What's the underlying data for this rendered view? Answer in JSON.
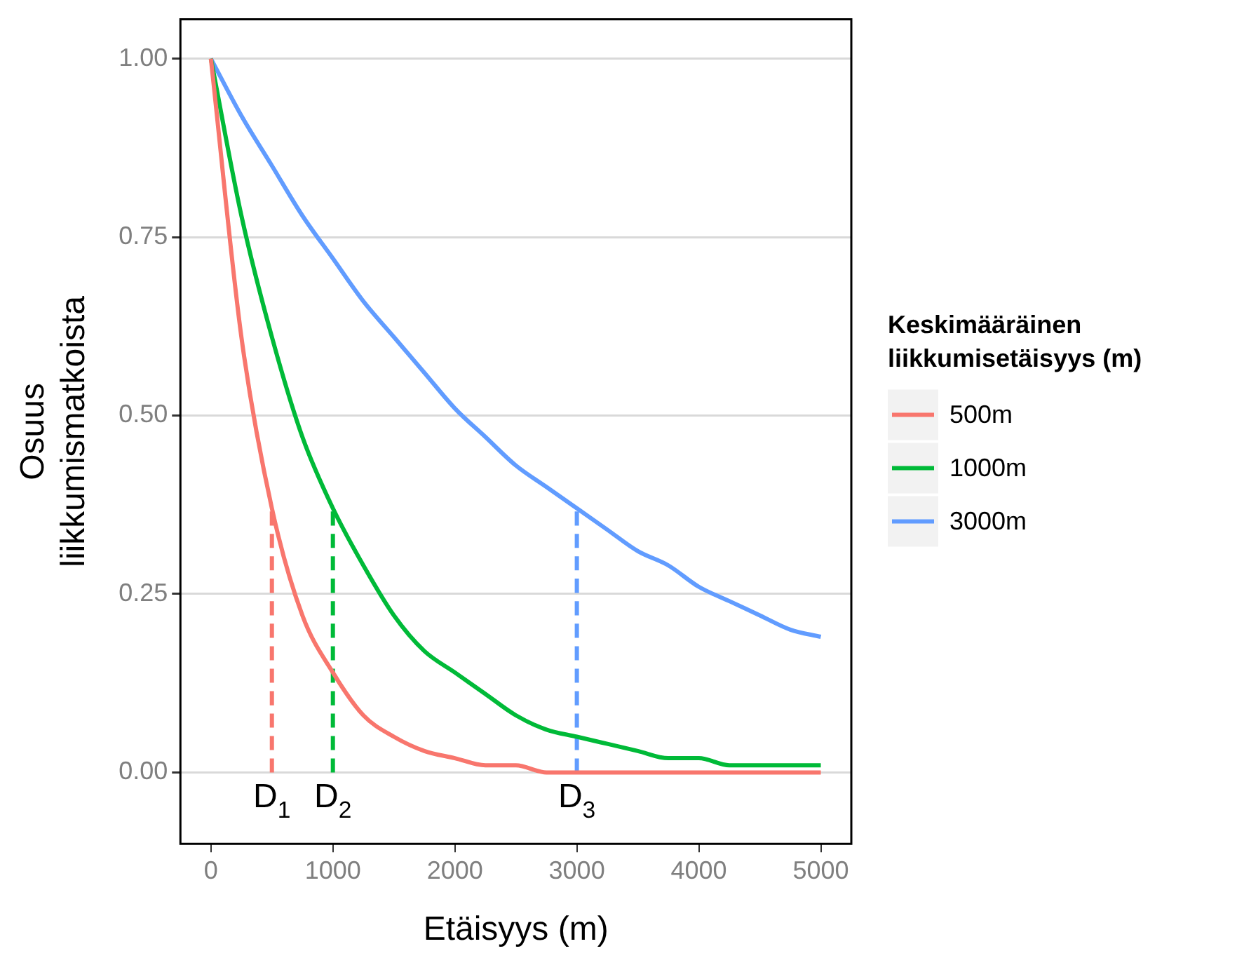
{
  "chart_data": {
    "type": "line",
    "xlabel": "Etäisyys (m)",
    "ylabel": "Osuus liikkumismatkoista",
    "legend_title": "Keskimääräinen liikkumisetäisyys (m)",
    "legend": "right",
    "grid": "y",
    "marker": "none",
    "line_style": "solid",
    "x": [
      0,
      250,
      500,
      750,
      1000,
      1250,
      1500,
      1750,
      2000,
      2250,
      2500,
      2750,
      3000,
      3250,
      3500,
      3750,
      4000,
      4250,
      4500,
      4750,
      5000
    ],
    "series": [
      {
        "name": "500m",
        "color": "#f8766d",
        "values": [
          1,
          0.61,
          0.37,
          0.22,
          0.14,
          0.08,
          0.05,
          0.03,
          0.02,
          0.01,
          0.01,
          0,
          0,
          0,
          0,
          0,
          0,
          0,
          0,
          0,
          0
        ]
      },
      {
        "name": "1000m",
        "color": "#00ba38",
        "values": [
          1,
          0.78,
          0.61,
          0.47,
          0.37,
          0.29,
          0.22,
          0.17,
          0.14,
          0.11,
          0.08,
          0.06,
          0.05,
          0.04,
          0.03,
          0.02,
          0.02,
          0.01,
          0.01,
          0.01,
          0.01
        ]
      },
      {
        "name": "3000m",
        "color": "#619cff",
        "values": [
          1,
          0.92,
          0.85,
          0.78,
          0.72,
          0.66,
          0.61,
          0.56,
          0.51,
          0.47,
          0.43,
          0.4,
          0.37,
          0.34,
          0.31,
          0.29,
          0.26,
          0.24,
          0.22,
          0.2,
          0.19
        ]
      },
      {
        "type": "line",
        "line_style": "dashed",
        "color": "#f8766d",
        "x": [
          500,
          500
        ],
        "values": [
          0,
          0.37
        ]
      },
      {
        "type": "line",
        "line_style": "dashed",
        "color": "#00ba38",
        "x": [
          1000,
          1000
        ],
        "values": [
          0,
          0.37
        ]
      },
      {
        "type": "line",
        "line_style": "dashed",
        "color": "#619cff",
        "x": [
          3000,
          3000
        ],
        "values": [
          0,
          0.37
        ]
      }
    ],
    "annotations": [
      {
        "text": "D$_{1}$",
        "x": 500,
        "y": 0
      },
      {
        "text": "D$_{2}$",
        "x": 1000,
        "y": 0
      },
      {
        "text": "D$_{3}$",
        "x": 3000,
        "y": 0
      }
    ],
    "xlim": [
      -250,
      5250
    ],
    "ylim": [
      -0.1,
      1.055
    ],
    "xticks": [
      0,
      1000,
      2000,
      3000,
      4000,
      5000
    ],
    "yticks": [
      {
        "value": 0,
        "label": "0.00"
      },
      {
        "value": 0.25,
        "label": "0.25"
      },
      {
        "value": 0.5,
        "label": "0.50"
      },
      {
        "value": 0.75,
        "label": "0.75"
      },
      {
        "value": 1,
        "label": "1.00"
      }
    ]
  }
}
